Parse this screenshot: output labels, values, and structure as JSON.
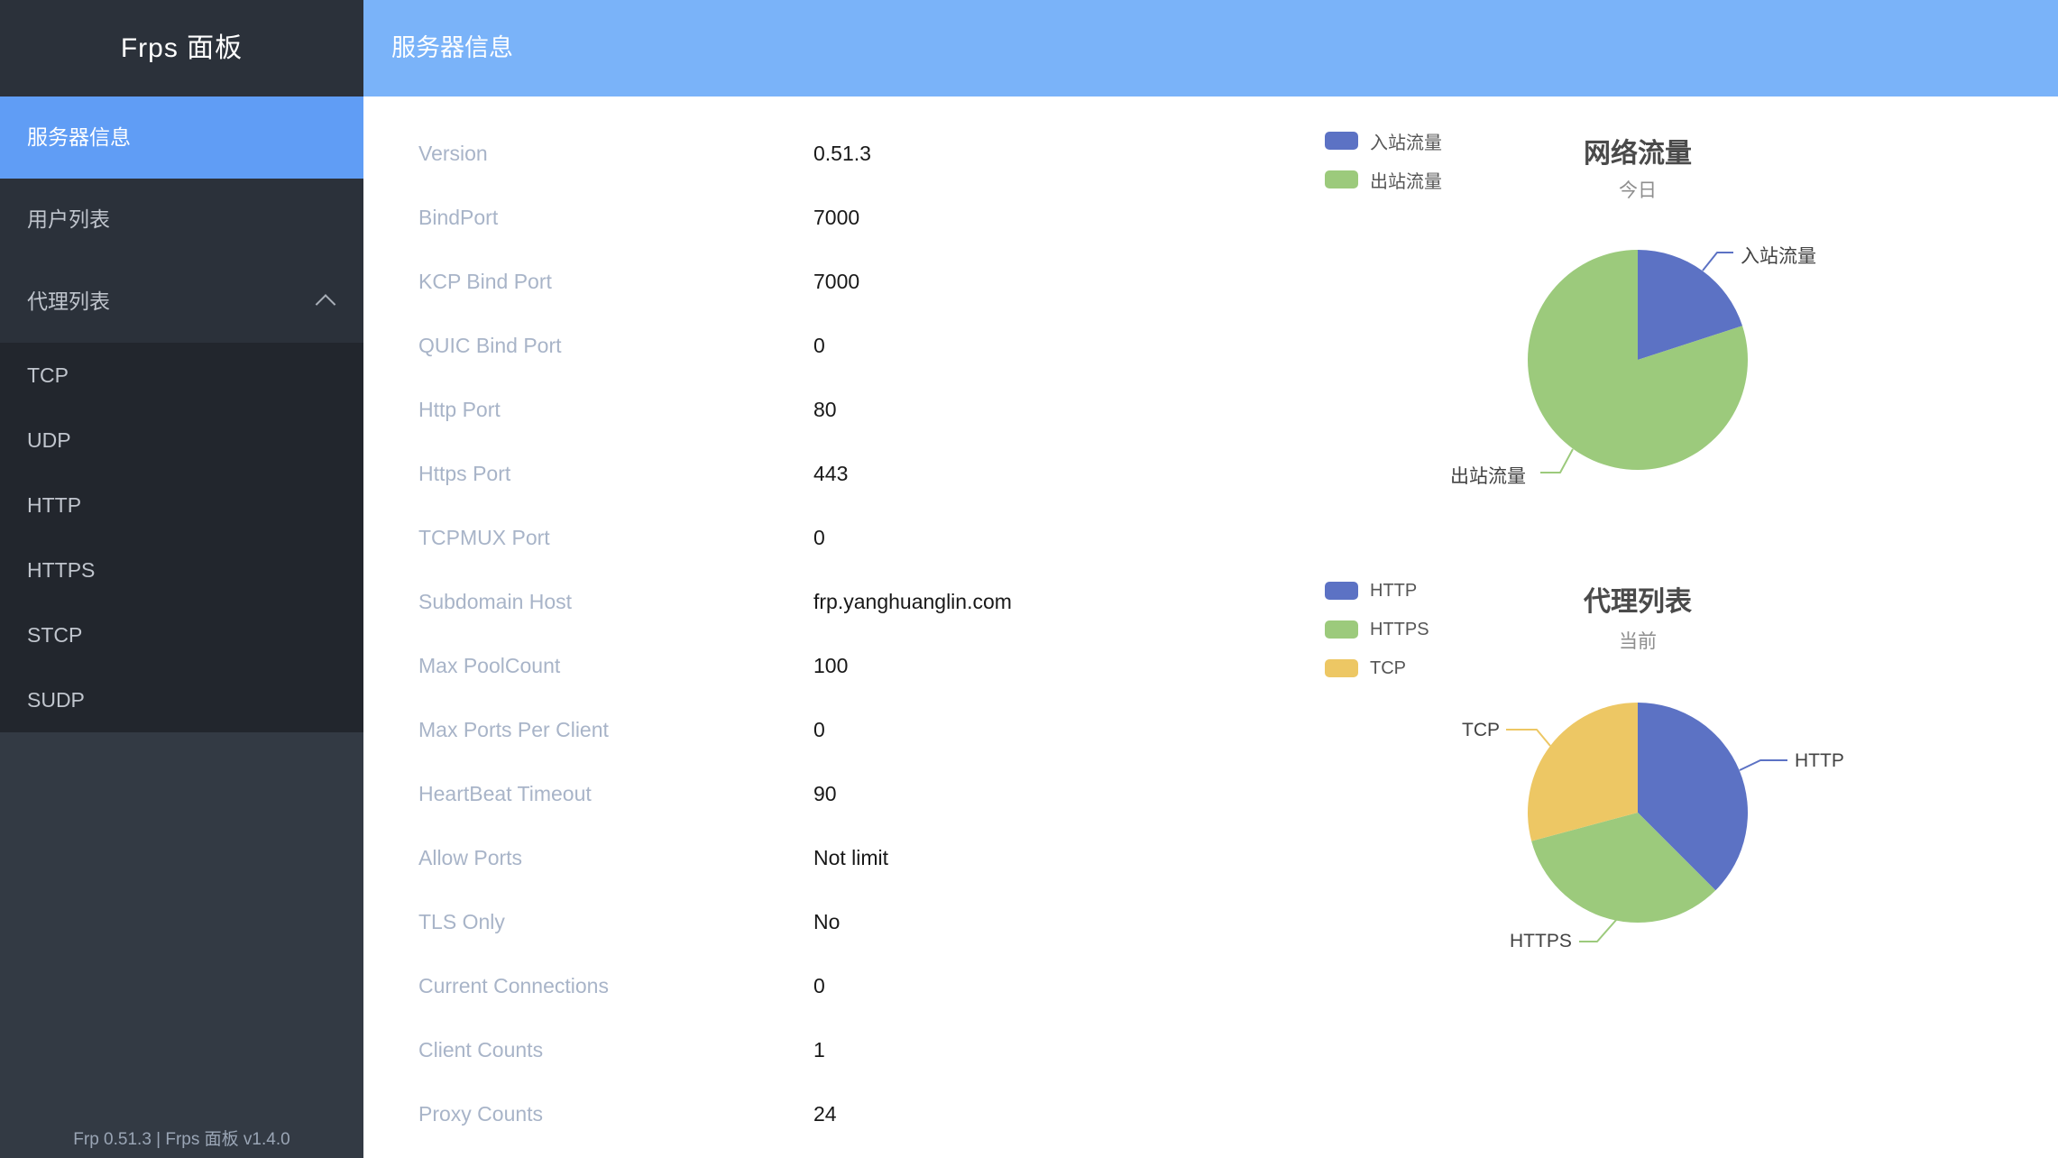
{
  "app": {
    "sidebar_title": "Frps 面板",
    "footer_text": "Frp 0.51.3 | Frps 面板 v1.4.0"
  },
  "header": {
    "title": "服务器信息"
  },
  "sidebar": {
    "items": [
      {
        "label": "服务器信息",
        "active": true
      },
      {
        "label": "用户列表",
        "active": false
      },
      {
        "label": "代理列表",
        "active": false,
        "expanded": true,
        "children": [
          {
            "label": "TCP"
          },
          {
            "label": "UDP"
          },
          {
            "label": "HTTP"
          },
          {
            "label": "HTTPS"
          },
          {
            "label": "STCP"
          },
          {
            "label": "SUDP"
          }
        ]
      }
    ]
  },
  "server_info": {
    "rows": [
      {
        "label": "Version",
        "value": "0.51.3"
      },
      {
        "label": "BindPort",
        "value": "7000"
      },
      {
        "label": "KCP Bind Port",
        "value": "7000"
      },
      {
        "label": "QUIC Bind Port",
        "value": "0"
      },
      {
        "label": "Http Port",
        "value": "80"
      },
      {
        "label": "Https Port",
        "value": "443"
      },
      {
        "label": "TCPMUX Port",
        "value": "0"
      },
      {
        "label": "Subdomain Host",
        "value": "frp.yanghuanglin.com"
      },
      {
        "label": "Max PoolCount",
        "value": "100"
      },
      {
        "label": "Max Ports Per Client",
        "value": "0"
      },
      {
        "label": "HeartBeat Timeout",
        "value": "90"
      },
      {
        "label": "Allow Ports",
        "value": "Not limit"
      },
      {
        "label": "TLS Only",
        "value": "No"
      },
      {
        "label": "Current Connections",
        "value": "0"
      },
      {
        "label": "Client Counts",
        "value": "1"
      },
      {
        "label": "Proxy Counts",
        "value": "24"
      }
    ]
  },
  "colors": {
    "header_bg": "#7ab3f9",
    "active_menu_bg": "#609df5",
    "pie_blue": "#5c72c4",
    "pie_green": "#9cca7c",
    "pie_yellow": "#edc764"
  },
  "chart_data": [
    {
      "type": "pie",
      "title": "网络流量",
      "subtitle": "今日",
      "legend_position": "top-left",
      "grid": false,
      "series": [
        {
          "name": "入站流量",
          "value": 20,
          "color": "#5c72c4"
        },
        {
          "name": "出站流量",
          "value": 80,
          "color": "#9cca7c"
        }
      ]
    },
    {
      "type": "pie",
      "title": "代理列表",
      "subtitle": "当前",
      "legend_position": "top-left",
      "grid": false,
      "series": [
        {
          "name": "HTTP",
          "value": 9,
          "color": "#5c72c4"
        },
        {
          "name": "HTTPS",
          "value": 8,
          "color": "#9cca7c"
        },
        {
          "name": "TCP",
          "value": 7,
          "color": "#edc764"
        }
      ]
    }
  ]
}
